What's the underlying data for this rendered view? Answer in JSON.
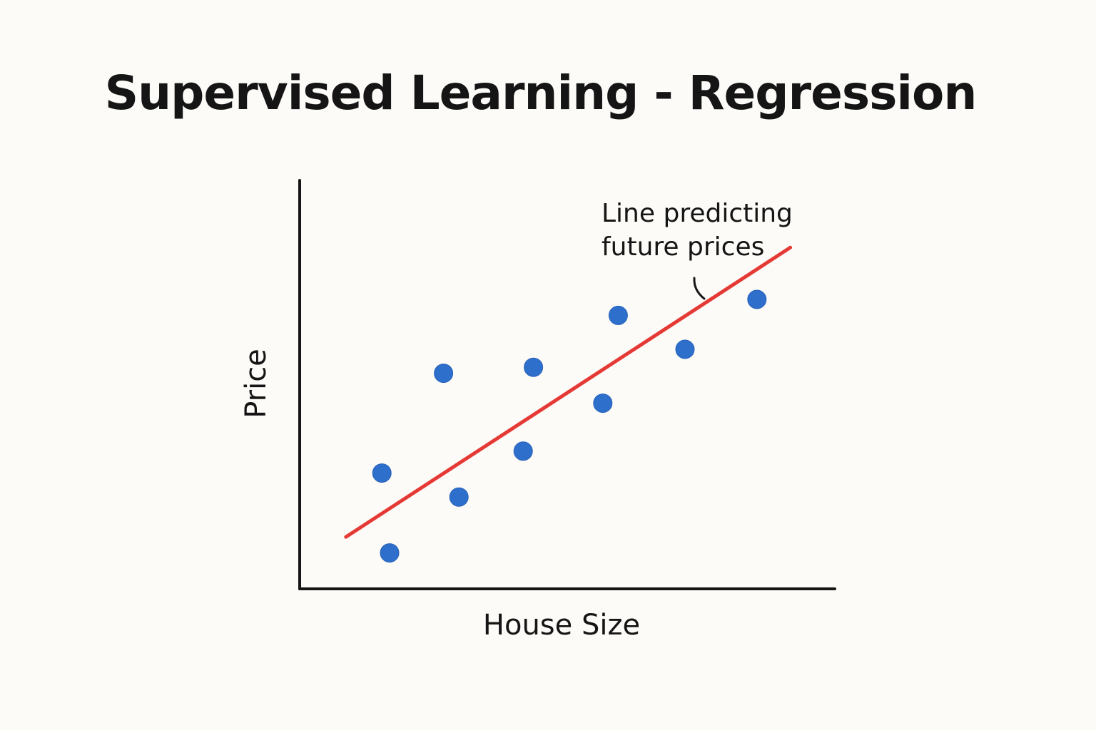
{
  "title": "Supervised Learning - Regression",
  "colors": {
    "points": "#2f6fcc",
    "regression_line": "#e53935",
    "axes": "#151515",
    "background": "#fcfbf7"
  },
  "chart_data": {
    "type": "scatter",
    "title": "Supervised Learning - Regression",
    "xlabel": "House Size",
    "ylabel": "Price",
    "xlim": [
      0,
      100
    ],
    "ylim": [
      0,
      100
    ],
    "grid": false,
    "series": [
      {
        "type": "scatter",
        "x": [
          16,
          17.5,
          28,
          31,
          43.5,
          45.5,
          59,
          62,
          75,
          89
        ],
        "y": [
          29,
          9,
          54,
          23,
          34.5,
          55.5,
          46.5,
          68.5,
          60,
          72.5
        ]
      },
      {
        "type": "line",
        "x": [
          9,
          95.5
        ],
        "y": [
          13,
          85.5
        ]
      }
    ],
    "annotations": [
      {
        "text_lines": [
          "Line predicting",
          "future prices"
        ]
      }
    ]
  }
}
